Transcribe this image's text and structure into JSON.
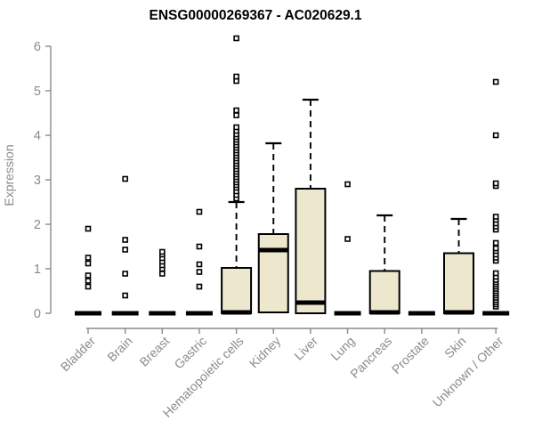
{
  "chart_data": {
    "type": "boxplot",
    "title": "ENSG00000269367 - AC020629.1",
    "ylabel": "Expression",
    "xlabel": "",
    "ylim": [
      0,
      6
    ],
    "yticks": [
      0,
      1,
      2,
      3,
      4,
      5,
      6
    ],
    "grid": false,
    "legend": "none",
    "categories": [
      "Bladder",
      "Brain",
      "Breast",
      "Gastric",
      "Hematopoietic cells",
      "Kidney",
      "Liver",
      "Lung",
      "Pancreas",
      "Prostate",
      "Skin",
      "Unknown / Other"
    ],
    "colors": {
      "box_fill": "#ece7cd",
      "box_border": "#000000",
      "median": "#000000",
      "whisker": "#000000",
      "outlier_stroke": "#000000",
      "outlier_fill": "#ffffff",
      "axis_line": "#8a8a8a",
      "tick_label": "#8b8b8b",
      "title": "#000000",
      "background": "#ffffff"
    },
    "series": [
      {
        "category": "Bladder",
        "q1": 0,
        "median": 0,
        "q3": 0,
        "whisker_low": 0,
        "whisker_high": 0,
        "outliers": [
          0.6,
          0.73,
          0.85,
          1.12,
          1.25,
          1.9
        ]
      },
      {
        "category": "Brain",
        "q1": 0,
        "median": 0,
        "q3": 0,
        "whisker_low": 0,
        "whisker_high": 0,
        "outliers": [
          0.4,
          0.89,
          1.43,
          1.65,
          3.02
        ]
      },
      {
        "category": "Breast",
        "q1": 0,
        "median": 0,
        "q3": 0,
        "whisker_low": 0,
        "whisker_high": 0,
        "outliers": [
          0.89,
          1.0,
          1.08,
          1.16,
          1.24,
          1.32,
          1.38
        ]
      },
      {
        "category": "Gastric",
        "q1": 0,
        "median": 0,
        "q3": 0,
        "whisker_low": 0,
        "whisker_high": 0,
        "outliers": [
          0.6,
          0.93,
          1.1,
          1.5,
          2.28
        ]
      },
      {
        "category": "Hematopoietic cells",
        "q1": 0,
        "median": 0.02,
        "q3": 1.02,
        "whisker_low": 0,
        "whisker_high": 2.5,
        "outliers": [
          2.58,
          2.66,
          2.74,
          2.82,
          2.88,
          2.94,
          3.0,
          3.06,
          3.12,
          3.18,
          3.24,
          3.3,
          3.36,
          3.42,
          3.48,
          3.54,
          3.6,
          3.66,
          3.72,
          3.78,
          3.84,
          3.9,
          3.96,
          4.02,
          4.1,
          4.18,
          4.45,
          4.56,
          5.22,
          5.32,
          6.18
        ]
      },
      {
        "category": "Kidney",
        "q1": 0.02,
        "median": 1.42,
        "q3": 1.78,
        "whisker_low": 0,
        "whisker_high": 3.82,
        "outliers": []
      },
      {
        "category": "Liver",
        "q1": 0,
        "median": 0.24,
        "q3": 2.8,
        "whisker_low": 0,
        "whisker_high": 4.8,
        "outliers": []
      },
      {
        "category": "Lung",
        "q1": 0,
        "median": 0,
        "q3": 0,
        "whisker_low": 0,
        "whisker_high": 0,
        "outliers": [
          1.67,
          2.9
        ]
      },
      {
        "category": "Pancreas",
        "q1": 0,
        "median": 0.02,
        "q3": 0.95,
        "whisker_low": 0,
        "whisker_high": 2.2,
        "outliers": []
      },
      {
        "category": "Prostate",
        "q1": 0,
        "median": 0,
        "q3": 0,
        "whisker_low": 0,
        "whisker_high": 0,
        "outliers": []
      },
      {
        "category": "Skin",
        "q1": 0,
        "median": 0.02,
        "q3": 1.35,
        "whisker_low": 0,
        "whisker_high": 2.12,
        "outliers": []
      },
      {
        "category": "Unknown / Other",
        "q1": 0,
        "median": 0,
        "q3": 0,
        "whisker_low": 0,
        "whisker_high": 0,
        "outliers": [
          0.15,
          0.2,
          0.25,
          0.3,
          0.35,
          0.4,
          0.45,
          0.5,
          0.55,
          0.6,
          0.65,
          0.7,
          0.75,
          0.82,
          0.9,
          1.18,
          1.25,
          1.32,
          1.4,
          1.46,
          1.58,
          1.88,
          1.95,
          2.02,
          2.1,
          2.17,
          2.86,
          2.92,
          4.0,
          5.2
        ]
      }
    ]
  }
}
